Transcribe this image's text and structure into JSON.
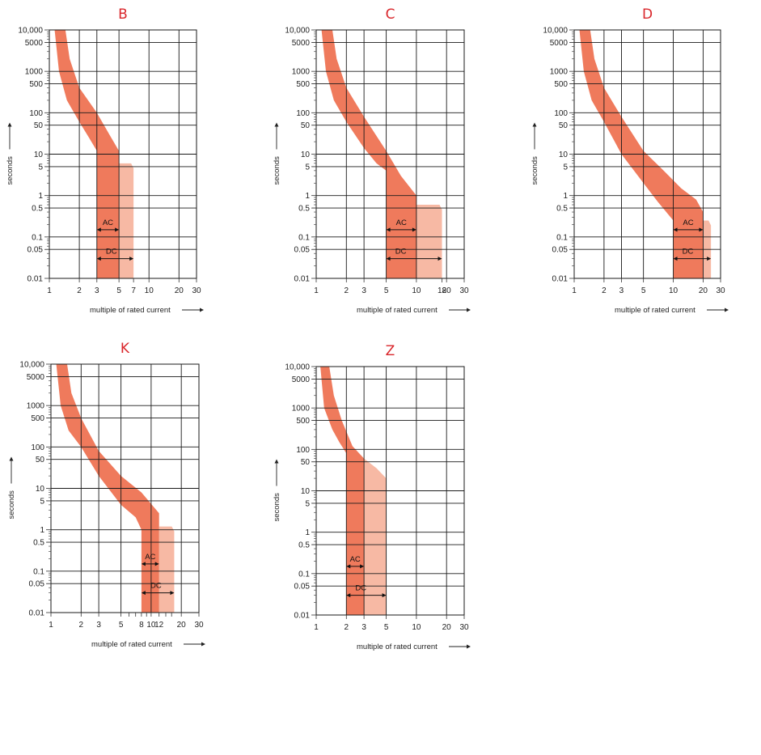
{
  "page": {
    "background": "#ffffff"
  },
  "colors": {
    "title": "#d9262b",
    "band": "#ef7a5c",
    "band_light": "#f7b9a4",
    "grid": "#1a1a1a"
  },
  "chart_data": [
    {
      "type": "area",
      "title": "B",
      "xlabel": "multiple of rated current",
      "ylabel": "seconds",
      "x_scale": "log",
      "y_scale": "log",
      "xlim": [
        1,
        30
      ],
      "ylim": [
        0.01,
        10000
      ],
      "x_ticks": [
        {
          "v": 1,
          "t": "1"
        },
        {
          "v": 2,
          "t": "2"
        },
        {
          "v": 3,
          "t": "3"
        },
        {
          "v": 5,
          "t": "5"
        },
        {
          "v": 7,
          "t": "7"
        },
        {
          "v": 10,
          "t": "10"
        },
        {
          "v": 20,
          "t": "20"
        },
        {
          "v": 30,
          "t": "30"
        }
      ],
      "x_grid": [
        2,
        3,
        5,
        10,
        20
      ],
      "y_ticks": [
        {
          "v": 10000,
          "t": "10,000"
        },
        {
          "v": 5000,
          "t": "5000"
        },
        {
          "v": 1000,
          "t": "1000"
        },
        {
          "v": 500,
          "t": "500"
        },
        {
          "v": 100,
          "t": "100"
        },
        {
          "v": 50,
          "t": "50"
        },
        {
          "v": 10,
          "t": "10"
        },
        {
          "v": 5,
          "t": "5"
        },
        {
          "v": 1,
          "t": "1"
        },
        {
          "v": 0.5,
          "t": "0.5"
        },
        {
          "v": 0.1,
          "t": "0.1"
        },
        {
          "v": 0.05,
          "t": "0.05"
        },
        {
          "v": 0.01,
          "t": "0.01"
        }
      ],
      "y_grid": [
        10000,
        5000,
        1000,
        500,
        100,
        50,
        10,
        5,
        1,
        0.5,
        0.1,
        0.05
      ],
      "band_lower": [
        [
          1.13,
          10000
        ],
        [
          1.25,
          1000
        ],
        [
          1.5,
          200
        ],
        [
          2,
          60
        ],
        [
          2.5,
          25
        ],
        [
          3,
          12
        ],
        [
          3,
          0.01
        ]
      ],
      "band_upper": [
        [
          1.45,
          10000
        ],
        [
          1.6,
          2000
        ],
        [
          2,
          400
        ],
        [
          3,
          100
        ],
        [
          4,
          30
        ],
        [
          5,
          12
        ],
        [
          5,
          0.01
        ]
      ],
      "dc_extension": {
        "x_from": 5,
        "x_to": 7,
        "y_top": 6
      },
      "ac_range": {
        "label": "AC",
        "from": 3,
        "to": 5,
        "y": 0.15
      },
      "dc_range": {
        "label": "DC",
        "from": 3,
        "to": 7,
        "y": 0.03
      }
    },
    {
      "type": "area",
      "title": "C",
      "xlabel": "multiple of rated current",
      "ylabel": "seconds",
      "x_scale": "log",
      "y_scale": "log",
      "xlim": [
        1,
        30
      ],
      "ylim": [
        0.01,
        10000
      ],
      "x_ticks": [
        {
          "v": 1,
          "t": "1"
        },
        {
          "v": 2,
          "t": "2"
        },
        {
          "v": 3,
          "t": "3"
        },
        {
          "v": 5,
          "t": "5"
        },
        {
          "v": 10,
          "t": "10"
        },
        {
          "v": 18,
          "t": "18"
        },
        {
          "v": 20,
          "t": "20"
        },
        {
          "v": 30,
          "t": "30"
        }
      ],
      "x_grid": [
        2,
        3,
        5,
        10,
        20
      ],
      "y_ticks": [
        {
          "v": 10000,
          "t": "10,000"
        },
        {
          "v": 5000,
          "t": "5000"
        },
        {
          "v": 1000,
          "t": "1000"
        },
        {
          "v": 500,
          "t": "500"
        },
        {
          "v": 100,
          "t": "100"
        },
        {
          "v": 50,
          "t": "50"
        },
        {
          "v": 10,
          "t": "10"
        },
        {
          "v": 5,
          "t": "5"
        },
        {
          "v": 1,
          "t": "1"
        },
        {
          "v": 0.5,
          "t": "0.5"
        },
        {
          "v": 0.1,
          "t": "0.1"
        },
        {
          "v": 0.05,
          "t": "0.05"
        },
        {
          "v": 0.01,
          "t": "0.01"
        }
      ],
      "y_grid": [
        10000,
        5000,
        1000,
        500,
        100,
        50,
        10,
        5,
        1,
        0.5,
        0.1,
        0.05
      ],
      "band_lower": [
        [
          1.13,
          10000
        ],
        [
          1.25,
          1000
        ],
        [
          1.5,
          200
        ],
        [
          2,
          60
        ],
        [
          3,
          14
        ],
        [
          4,
          6
        ],
        [
          5,
          4
        ],
        [
          5,
          0.01
        ]
      ],
      "band_upper": [
        [
          1.45,
          10000
        ],
        [
          1.6,
          2000
        ],
        [
          2,
          400
        ],
        [
          3,
          80
        ],
        [
          5,
          12
        ],
        [
          7,
          3
        ],
        [
          10,
          1
        ],
        [
          10,
          0.01
        ]
      ],
      "dc_extension": {
        "x_from": 10,
        "x_to": 18,
        "y_top": 0.6
      },
      "ac_range": {
        "label": "AC",
        "from": 5,
        "to": 10,
        "y": 0.15
      },
      "dc_range": {
        "label": "DC",
        "from": 5,
        "to": 18,
        "y": 0.03
      }
    },
    {
      "type": "area",
      "title": "D",
      "xlabel": "multiple of rated current",
      "ylabel": "seconds",
      "x_scale": "log",
      "y_scale": "log",
      "xlim": [
        1,
        30
      ],
      "ylim": [
        0.01,
        10000
      ],
      "x_ticks": [
        {
          "v": 1,
          "t": "1"
        },
        {
          "v": 2,
          "t": "2"
        },
        {
          "v": 3,
          "t": "3"
        },
        {
          "v": 5,
          "t": "5"
        },
        {
          "v": 10,
          "t": "10"
        },
        {
          "v": 20,
          "t": "20"
        },
        {
          "v": 30,
          "t": "30"
        }
      ],
      "x_grid": [
        2,
        3,
        5,
        10,
        20
      ],
      "y_ticks": [
        {
          "v": 10000,
          "t": "10,000"
        },
        {
          "v": 5000,
          "t": "5000"
        },
        {
          "v": 1000,
          "t": "1000"
        },
        {
          "v": 500,
          "t": "500"
        },
        {
          "v": 100,
          "t": "100"
        },
        {
          "v": 50,
          "t": "50"
        },
        {
          "v": 10,
          "t": "10"
        },
        {
          "v": 5,
          "t": "5"
        },
        {
          "v": 1,
          "t": "1"
        },
        {
          "v": 0.5,
          "t": "0.5"
        },
        {
          "v": 0.1,
          "t": "0.1"
        },
        {
          "v": 0.05,
          "t": "0.05"
        },
        {
          "v": 0.01,
          "t": "0.01"
        }
      ],
      "y_grid": [
        10000,
        5000,
        1000,
        500,
        100,
        50,
        10,
        5,
        1,
        0.5,
        0.1,
        0.05
      ],
      "band_lower": [
        [
          1.13,
          10000
        ],
        [
          1.25,
          1000
        ],
        [
          1.5,
          200
        ],
        [
          2,
          60
        ],
        [
          3,
          10
        ],
        [
          5,
          2
        ],
        [
          7,
          0.7
        ],
        [
          10,
          0.25
        ],
        [
          10,
          0.01
        ]
      ],
      "band_upper": [
        [
          1.45,
          10000
        ],
        [
          1.6,
          2000
        ],
        [
          2,
          400
        ],
        [
          3,
          80
        ],
        [
          5,
          12
        ],
        [
          8,
          4
        ],
        [
          12,
          1.5
        ],
        [
          17,
          0.8
        ],
        [
          20,
          0.4
        ],
        [
          20,
          0.01
        ]
      ],
      "dc_extension": {
        "x_from": 20,
        "x_to": 24,
        "y_top": 0.25
      },
      "ac_range": {
        "label": "AC",
        "from": 10,
        "to": 20,
        "y": 0.15
      },
      "dc_range": {
        "label": "DC",
        "from": 10,
        "to": 24,
        "y": 0.03
      }
    },
    {
      "type": "area",
      "title": "K",
      "xlabel": "multiple of rated current",
      "ylabel": "seconds",
      "x_scale": "log",
      "y_scale": "log",
      "xlim": [
        1,
        30
      ],
      "ylim": [
        0.01,
        10000
      ],
      "x_ticks": [
        {
          "v": 1,
          "t": "1"
        },
        {
          "v": 2,
          "t": "2"
        },
        {
          "v": 3,
          "t": "3"
        },
        {
          "v": 5,
          "t": "5"
        },
        {
          "v": 8,
          "t": "8"
        },
        {
          "v": 10,
          "t": "10"
        },
        {
          "v": 12,
          "t": "12"
        },
        {
          "v": 20,
          "t": "20"
        },
        {
          "v": 30,
          "t": "30"
        }
      ],
      "x_grid": [
        2,
        3,
        5,
        10,
        20
      ],
      "x_minor": [
        6,
        7,
        9,
        14,
        16
      ],
      "y_ticks": [
        {
          "v": 10000,
          "t": "10,000"
        },
        {
          "v": 5000,
          "t": "5000"
        },
        {
          "v": 1000,
          "t": "1000"
        },
        {
          "v": 500,
          "t": "500"
        },
        {
          "v": 100,
          "t": "100"
        },
        {
          "v": 50,
          "t": "50"
        },
        {
          "v": 10,
          "t": "10"
        },
        {
          "v": 5,
          "t": "5"
        },
        {
          "v": 1,
          "t": "1"
        },
        {
          "v": 0.5,
          "t": "0.5"
        },
        {
          "v": 0.1,
          "t": "0.1"
        },
        {
          "v": 0.05,
          "t": "0.05"
        },
        {
          "v": 0.01,
          "t": "0.01"
        }
      ],
      "y_grid": [
        10000,
        5000,
        1000,
        500,
        100,
        50,
        10,
        5,
        1,
        0.5,
        0.1,
        0.05
      ],
      "band_lower": [
        [
          1.13,
          10000
        ],
        [
          1.25,
          1000
        ],
        [
          1.5,
          250
        ],
        [
          2,
          100
        ],
        [
          3,
          20
        ],
        [
          5,
          4
        ],
        [
          7,
          2
        ],
        [
          8,
          1
        ],
        [
          8,
          0.01
        ]
      ],
      "band_upper": [
        [
          1.45,
          10000
        ],
        [
          1.6,
          2000
        ],
        [
          2,
          500
        ],
        [
          3,
          80
        ],
        [
          5,
          20
        ],
        [
          8,
          8
        ],
        [
          12,
          2.5
        ],
        [
          12,
          0.01
        ]
      ],
      "dc_extension": {
        "x_from": 12,
        "x_to": 17,
        "y_top": 1.2
      },
      "ac_range": {
        "label": "AC",
        "from": 8,
        "to": 12,
        "y": 0.15
      },
      "dc_range": {
        "label": "DC",
        "from": 8,
        "to": 17,
        "y": 0.03
      }
    },
    {
      "type": "area",
      "title": "Z",
      "xlabel": "multiple of rated current",
      "ylabel": "seconds",
      "x_scale": "log",
      "y_scale": "log",
      "xlim": [
        1,
        30
      ],
      "ylim": [
        0.01,
        10000
      ],
      "x_ticks": [
        {
          "v": 1,
          "t": "1"
        },
        {
          "v": 2,
          "t": "2"
        },
        {
          "v": 3,
          "t": "3"
        },
        {
          "v": 5,
          "t": "5"
        },
        {
          "v": 10,
          "t": "10"
        },
        {
          "v": 20,
          "t": "20"
        },
        {
          "v": 30,
          "t": "30"
        }
      ],
      "x_grid": [
        2,
        3,
        5,
        10,
        20
      ],
      "y_ticks": [
        {
          "v": 10000,
          "t": "10,000"
        },
        {
          "v": 5000,
          "t": "5000"
        },
        {
          "v": 1000,
          "t": "1000"
        },
        {
          "v": 500,
          "t": "500"
        },
        {
          "v": 100,
          "t": "100"
        },
        {
          "v": 50,
          "t": "50"
        },
        {
          "v": 10,
          "t": "10"
        },
        {
          "v": 5,
          "t": "5"
        },
        {
          "v": 1,
          "t": "1"
        },
        {
          "v": 0.5,
          "t": "0.5"
        },
        {
          "v": 0.1,
          "t": "0.1"
        },
        {
          "v": 0.05,
          "t": "0.05"
        },
        {
          "v": 0.01,
          "t": "0.01"
        }
      ],
      "y_grid": [
        10000,
        5000,
        1000,
        500,
        100,
        50,
        10,
        5,
        1,
        0.5,
        0.1,
        0.05
      ],
      "band_lower": [
        [
          1.1,
          10000
        ],
        [
          1.2,
          1000
        ],
        [
          1.45,
          300
        ],
        [
          1.7,
          150
        ],
        [
          2,
          80
        ],
        [
          2,
          0.01
        ]
      ],
      "band_upper": [
        [
          1.35,
          10000
        ],
        [
          1.5,
          2000
        ],
        [
          1.8,
          500
        ],
        [
          2.3,
          120
        ],
        [
          3,
          60
        ],
        [
          3,
          0.01
        ]
      ],
      "dc_extension": {
        "x_from": 3,
        "x_to": 5,
        "y_top": 20,
        "curve": [
          [
            3,
            60
          ],
          [
            4,
            35
          ],
          [
            5,
            20
          ]
        ]
      },
      "ac_range": {
        "label": "AC",
        "from": 2,
        "to": 3,
        "y": 0.15
      },
      "dc_range": {
        "label": "DC",
        "from": 2,
        "to": 5,
        "y": 0.03
      }
    }
  ]
}
